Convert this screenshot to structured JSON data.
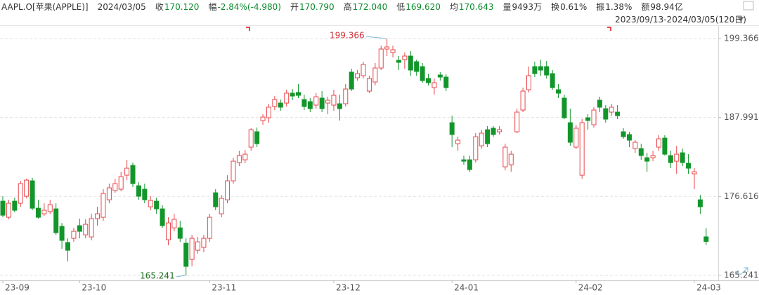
{
  "header": {
    "symbol": "AAPL.O[苹果(APPLE)]",
    "date": "2024/03/05",
    "quotes": [
      {
        "label": "收",
        "value": "170.120",
        "color": "#0b8a2b"
      },
      {
        "label": "幅",
        "value": "-2.84%(-4.980)",
        "color": "#0b8a2b"
      },
      {
        "label": "开",
        "value": "170.790",
        "color": "#0b8a2b"
      },
      {
        "label": "高",
        "value": "172.040",
        "color": "#0b8a2b"
      },
      {
        "label": "低",
        "value": "169.620",
        "color": "#0b8a2b"
      },
      {
        "label": "均",
        "value": "170.643",
        "color": "#0b8a2b"
      },
      {
        "label": "量",
        "value": "9493万",
        "color": "#333333"
      },
      {
        "label": "换",
        "value": "0.61%",
        "color": "#333333"
      },
      {
        "label": "振",
        "value": "1.38%",
        "color": "#333333"
      },
      {
        "label": "额",
        "value": "98.94亿",
        "color": "#333333"
      }
    ],
    "range": "2023/09/13-2024/03/05(120日)"
  },
  "chart_data": {
    "type": "candlestick",
    "up_color": "#e8474c",
    "down_color": "#12962b",
    "grid": true,
    "categories": [
      "23-09",
      null,
      null,
      null,
      null,
      null,
      null,
      null,
      null,
      null,
      null,
      null,
      null,
      "23-10",
      null,
      null,
      null,
      null,
      null,
      null,
      null,
      null,
      null,
      null,
      null,
      null,
      null,
      null,
      null,
      null,
      null,
      null,
      null,
      null,
      null,
      "23-11",
      null,
      null,
      null,
      null,
      null,
      null,
      null,
      null,
      null,
      null,
      null,
      null,
      null,
      null,
      null,
      null,
      null,
      null,
      null,
      null,
      "23-12",
      null,
      null,
      null,
      null,
      null,
      null,
      null,
      null,
      null,
      null,
      null,
      null,
      null,
      null,
      null,
      null,
      null,
      null,
      null,
      "24-01",
      null,
      null,
      null,
      null,
      null,
      null,
      null,
      null,
      null,
      null,
      null,
      null,
      null,
      null,
      null,
      null,
      null,
      null,
      null,
      null,
      "24-02",
      null,
      null,
      null,
      null,
      null,
      null,
      null,
      null,
      null,
      null,
      null,
      null,
      null,
      null,
      null,
      null,
      null,
      null,
      null,
      "24-03",
      null,
      null
    ],
    "open": [
      175.93,
      173.61,
      175.93,
      175.63,
      176.64,
      178.86,
      174.92,
      174.11,
      174.42,
      174.82,
      172.3,
      169.97,
      170.58,
      172.4,
      171.08,
      170.78,
      173.41,
      173.61,
      176.13,
      177.45,
      177.65,
      179.67,
      181.08,
      178.15,
      177.65,
      175.12,
      175.93,
      174.82,
      170.38,
      172.09,
      172.09,
      169.87,
      167.55,
      168.86,
      169.27,
      170.58,
      177.14,
      174.11,
      176.13,
      178.86,
      181.49,
      181.89,
      183.71,
      185.93,
      187.55,
      187.95,
      189.57,
      190.07,
      190.07,
      191.49,
      191.59,
      190.58,
      190.27,
      189.77,
      190.78,
      190.07,
      189.77,
      189.97,
      189.97,
      194.52,
      193.71,
      194.01,
      191.79,
      193.1,
      195.12,
      197.85,
      197.34,
      196.23,
      196.33,
      196.84,
      196.03,
      195.32,
      193.61,
      192.29,
      194.11,
      193.81,
      187.24,
      184.21,
      181.89,
      181.89,
      181.89,
      183.91,
      186.23,
      186.44,
      185.93,
      180.88,
      181.18,
      185.93,
      189.06,
      191.99,
      195.32,
      195.32,
      195.32,
      194.31,
      191.99,
      190.78,
      187.24,
      183.71,
      179.67,
      187.95,
      186.94,
      190.48,
      189.26,
      188.76,
      188.76,
      185.93,
      185.53,
      183.51,
      183.51,
      182.19,
      182.19,
      183.71,
      185.02,
      182.5,
      181.69,
      182.9,
      181.39,
      179.87,
      176.13,
      170.79
    ],
    "high": [
      176.64,
      176.13,
      176.44,
      178.86,
      179.16,
      179.27,
      176.13,
      175.63,
      176.13,
      175.63,
      172.8,
      170.58,
      172.09,
      173.41,
      173.31,
      174.11,
      175.12,
      177.65,
      178.46,
      179.16,
      180.17,
      181.89,
      181.49,
      178.66,
      178.46,
      176.64,
      176.44,
      175.33,
      173.61,
      174.11,
      173.1,
      170.58,
      171.08,
      170.78,
      171.08,
      174.11,
      177.65,
      176.84,
      179.67,
      182.19,
      183.2,
      183.31,
      186.44,
      186.54,
      188.46,
      189.97,
      191.08,
      190.58,
      191.99,
      192.09,
      192.8,
      191.28,
      190.78,
      191.49,
      191.79,
      190.98,
      191.99,
      191.28,
      192.8,
      195.02,
      194.82,
      196.03,
      194.01,
      195.83,
      198.35,
      199.366,
      198.35,
      196.84,
      197.34,
      197.55,
      196.33,
      195.83,
      194.31,
      193.61,
      194.52,
      194.21,
      188.25,
      185.22,
      182.5,
      182.5,
      185.73,
      186.23,
      186.74,
      186.74,
      186.74,
      184.21,
      183.2,
      189.26,
      192.29,
      195.32,
      196.03,
      196.33,
      196.13,
      194.82,
      192.8,
      191.28,
      189.26,
      186.94,
      187.75,
      188.46,
      189.47,
      190.98,
      189.77,
      189.97,
      189.77,
      186.44,
      185.93,
      184.72,
      184.21,
      182.9,
      183.2,
      185.43,
      185.43,
      183.2,
      183.91,
      183.51,
      182.7,
      180.68,
      176.84,
      172.04
    ],
    "low": [
      173.61,
      173.31,
      174.32,
      175.12,
      176.34,
      174.62,
      173.41,
      173.81,
      174.11,
      171.08,
      169.06,
      167.25,
      170.07,
      170.58,
      170.58,
      170.28,
      172.4,
      173.1,
      175.63,
      177.14,
      177.35,
      178.96,
      177.95,
      176.13,
      175.63,
      174.62,
      174.11,
      172.09,
      169.57,
      171.59,
      170.07,
      165.241,
      166.54,
      168.36,
      168.56,
      170.07,
      174.62,
      173.61,
      175.63,
      178.46,
      180.98,
      181.39,
      183.2,
      183.71,
      186.94,
      187.24,
      189.06,
      188.96,
      189.57,
      190.48,
      190.78,
      189.06,
      188.76,
      189.26,
      188.76,
      188.46,
      188.96,
      187.55,
      189.57,
      191.79,
      193.3,
      193.61,
      191.49,
      192.6,
      194.82,
      196.84,
      196.64,
      194.82,
      195.02,
      194.01,
      194.01,
      193.0,
      192.6,
      191.28,
      193.3,
      191.79,
      183.71,
      183.2,
      181.18,
      180.17,
      181.49,
      183.51,
      183.71,
      185.22,
      185.53,
      180.38,
      180.17,
      185.73,
      188.76,
      191.59,
      193.81,
      194.01,
      193.61,
      191.99,
      190.78,
      187.75,
      183.91,
      183.41,
      179.16,
      186.23,
      186.54,
      188.76,
      187.24,
      188.25,
      187.75,
      184.92,
      183.71,
      182.9,
      181.89,
      180.17,
      181.69,
      183.2,
      182.5,
      180.68,
      179.87,
      180.98,
      179.87,
      177.65,
      174.11,
      169.62
    ],
    "close": [
      173.91,
      175.63,
      174.62,
      178.46,
      178.96,
      174.92,
      173.61,
      174.62,
      175.43,
      171.39,
      170.28,
      168.86,
      171.59,
      171.59,
      172.6,
      173.41,
      174.11,
      177.04,
      177.85,
      178.46,
      179.47,
      180.68,
      178.46,
      176.64,
      176.13,
      176.03,
      174.82,
      172.4,
      172.8,
      173.31,
      170.58,
      166.54,
      170.58,
      170.07,
      170.58,
      173.61,
      175.12,
      176.34,
      178.86,
      181.69,
      182.5,
      182.7,
      186.23,
      184.21,
      188.05,
      189.47,
      190.58,
      189.47,
      191.49,
      191.08,
      191.18,
      189.57,
      189.26,
      190.98,
      189.26,
      190.48,
      191.18,
      189.26,
      192.09,
      192.09,
      194.31,
      195.63,
      193.61,
      195.12,
      197.85,
      198.15,
      197.75,
      195.93,
      196.84,
      194.82,
      194.62,
      193.3,
      193.0,
      193.0,
      193.81,
      192.29,
      185.53,
      184.72,
      181.69,
      180.48,
      185.22,
      185.73,
      184.21,
      185.53,
      186.23,
      183.71,
      182.7,
      188.76,
      191.79,
      194.01,
      194.31,
      194.82,
      194.11,
      192.29,
      191.49,
      187.95,
      184.42,
      186.44,
      187.24,
      187.55,
      189.06,
      189.47,
      187.75,
      189.47,
      188.25,
      185.22,
      184.72,
      184.42,
      182.5,
      181.69,
      182.5,
      184.92,
      182.7,
      181.49,
      182.7,
      181.49,
      180.68,
      180.17,
      175.12,
      170.12
    ],
    "ylim": [
      164.53,
      201.08
    ],
    "yticks": [
      165.241,
      176.616,
      187.991,
      199.366
    ]
  }
}
